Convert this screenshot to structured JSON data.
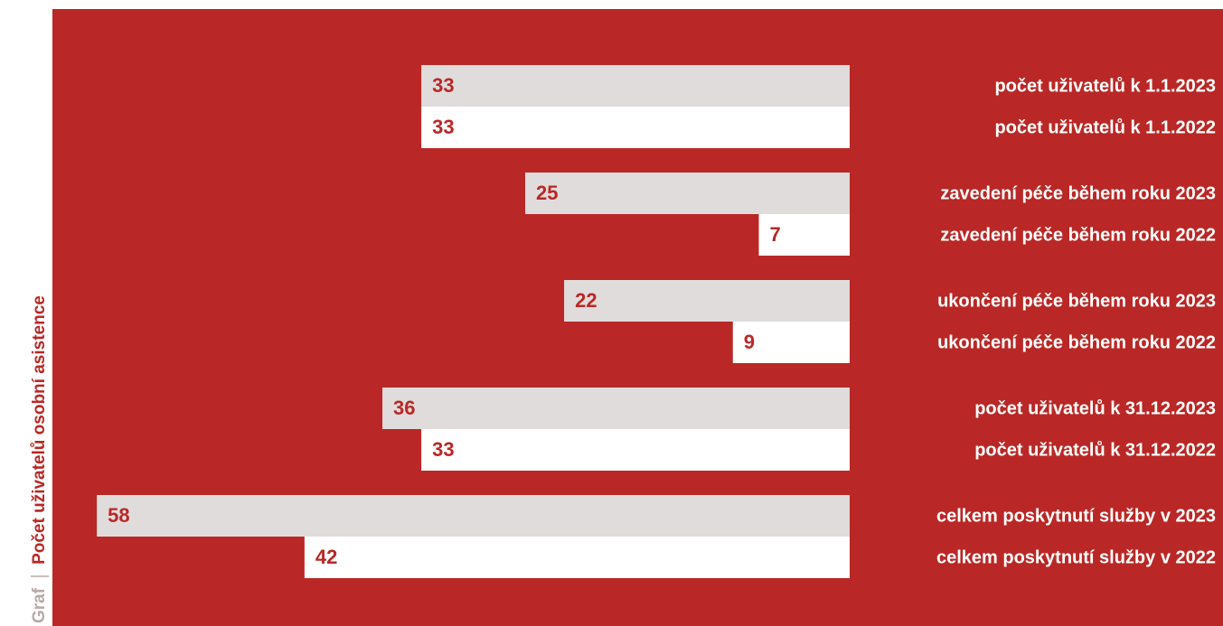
{
  "chart_data": {
    "type": "bar",
    "orientation": "horizontal",
    "label": "Graf",
    "title": "Počet uživatelů osobní asistence",
    "categories": [
      "počet uživatelů k 1.1.2023",
      "počet uživatelů k 1.1.2022",
      "zavedení péče během roku 2023",
      "zavedení péče během roku 2022",
      "ukončení péče během roku 2023",
      "ukončení péče během roku 2022",
      "počet uživatelů k 31.12.2023",
      "počet uživatelů k 31.12.2022",
      "celkem poskytnutí služby v 2023",
      "celkem poskytnutí služby v 2022"
    ],
    "values": [
      33,
      33,
      25,
      7,
      22,
      9,
      36,
      33,
      58,
      42
    ],
    "colors": [
      "#e0dcdc",
      "#ffffff",
      "#e0dcdc",
      "#ffffff",
      "#e0dcdc",
      "#ffffff",
      "#e0dcdc",
      "#ffffff",
      "#e0dcdc",
      "#ffffff"
    ],
    "background": "#b92826"
  }
}
